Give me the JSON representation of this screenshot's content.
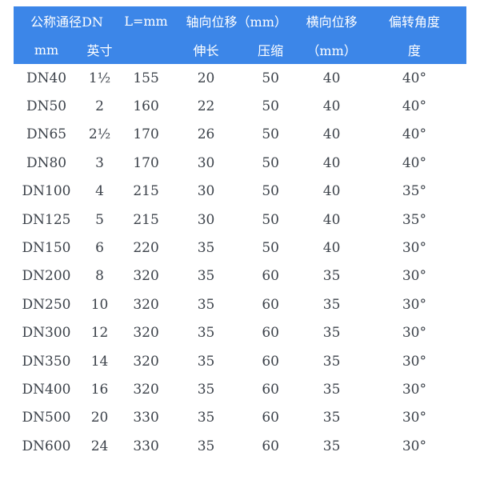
{
  "colors": {
    "header_bg": "#3c86e8",
    "header_text": "#ffffff",
    "body_text": "#3b4149",
    "page_bg": "#ffffff"
  },
  "chart_data": {
    "type": "table",
    "title": "",
    "header_row1": {
      "nominal_diameter": "公称通径DN",
      "length": "L=mm",
      "axial_displacement": "轴向位移（mm）",
      "lateral_displacement": "横向位移",
      "deflection_angle": "偏转角度"
    },
    "header_row2": {
      "mm_label": "mm",
      "inch_label": "英寸",
      "blank": "",
      "elongation": "伸长",
      "compression": "压缩",
      "lateral_unit": "（mm）",
      "degree": "度"
    },
    "rows": [
      [
        "DN40",
        "1½",
        "155",
        "20",
        "50",
        "40",
        "40°"
      ],
      [
        "DN50",
        "2",
        "160",
        "22",
        "50",
        "40",
        "40°"
      ],
      [
        "DN65",
        "2½",
        "170",
        "26",
        "50",
        "40",
        "40°"
      ],
      [
        "DN80",
        "3",
        "170",
        "30",
        "50",
        "40",
        "40°"
      ],
      [
        "DN100",
        "4",
        "215",
        "30",
        "50",
        "40",
        "35°"
      ],
      [
        "DN125",
        "5",
        "215",
        "30",
        "50",
        "40",
        "35°"
      ],
      [
        "DN150",
        "6",
        "220",
        "35",
        "50",
        "40",
        "30°"
      ],
      [
        "DN200",
        "8",
        "320",
        "35",
        "60",
        "35",
        "30°"
      ],
      [
        "DN250",
        "10",
        "320",
        "35",
        "60",
        "35",
        "30°"
      ],
      [
        "DN300",
        "12",
        "320",
        "35",
        "60",
        "35",
        "30°"
      ],
      [
        "DN350",
        "14",
        "320",
        "35",
        "60",
        "35",
        "30°"
      ],
      [
        "DN400",
        "16",
        "320",
        "35",
        "60",
        "35",
        "30°"
      ],
      [
        "DN500",
        "20",
        "330",
        "35",
        "60",
        "35",
        "30°"
      ],
      [
        "DN600",
        "24",
        "330",
        "35",
        "60",
        "35",
        "30°"
      ]
    ]
  }
}
